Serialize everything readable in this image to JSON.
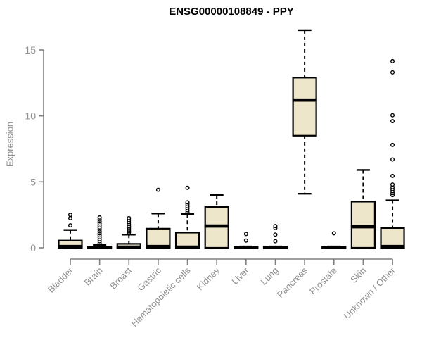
{
  "chart_data": {
    "type": "boxplot",
    "title": "ENSG00000108849 - PPY",
    "ylabel": "Expression",
    "ylim": [
      0,
      16.6
    ],
    "yticks": [
      0,
      5,
      10,
      15
    ],
    "grid": false,
    "colors": {
      "box_fill": "#EDE6CB",
      "box_border": "#000000",
      "axis_line": "#808080",
      "axis_text": "#8f8f8f",
      "title_text": "#000000"
    },
    "categories": [
      "Bladder",
      "Brain",
      "Breast",
      "Gastric",
      "Hematopoietic cells",
      "Kidney",
      "Liver",
      "Lung",
      "Pancreas",
      "Prostate",
      "Skin",
      "Unknown / Other"
    ],
    "series": [
      {
        "category": "Bladder",
        "whisker_low": 0,
        "q1": 0,
        "median": 0.1,
        "q3": 0.55,
        "whisker_high": 1.35,
        "outliers": [
          1.7,
          2.25,
          2.5
        ]
      },
      {
        "category": "Brain",
        "whisker_low": 0,
        "q1": 0,
        "median": 0.03,
        "q3": 0.1,
        "whisker_high": 0.2,
        "outliers": [
          0.35,
          0.5,
          0.65,
          0.8,
          0.95,
          1.1,
          1.25,
          1.4,
          1.55,
          1.7,
          1.85,
          2.0,
          2.15,
          2.3
        ]
      },
      {
        "category": "Breast",
        "whisker_low": 0,
        "q1": 0,
        "median": 0.05,
        "q3": 0.3,
        "whisker_high": 1.0,
        "outliers": [
          1.15,
          1.25,
          1.35,
          1.45,
          1.55,
          1.65,
          1.8,
          1.95,
          2.1,
          2.25
        ]
      },
      {
        "category": "Gastric",
        "whisker_low": 0,
        "q1": 0,
        "median": 0.1,
        "q3": 1.45,
        "whisker_high": 2.6,
        "outliers": [
          4.4
        ]
      },
      {
        "category": "Hematopoietic cells",
        "whisker_low": 0,
        "q1": 0,
        "median": 0.05,
        "q3": 1.15,
        "whisker_high": 2.55,
        "outliers": [
          2.7,
          2.85,
          3.0,
          3.15,
          3.3,
          3.45,
          4.55
        ]
      },
      {
        "category": "Kidney",
        "whisker_low": 0,
        "q1": 0,
        "median": 1.65,
        "q3": 3.1,
        "whisker_high": 4.0,
        "outliers": []
      },
      {
        "category": "Liver",
        "whisker_low": 0,
        "q1": 0,
        "median": 0.02,
        "q3": 0.06,
        "whisker_high": 0.1,
        "outliers": [
          0.55,
          1.05
        ]
      },
      {
        "category": "Lung",
        "whisker_low": 0,
        "q1": 0,
        "median": 0.02,
        "q3": 0.06,
        "whisker_high": 0.1,
        "outliers": [
          0.5,
          1.0,
          1.5,
          1.65
        ]
      },
      {
        "category": "Pancreas",
        "whisker_low": 4.1,
        "q1": 8.5,
        "median": 11.2,
        "q3": 12.9,
        "whisker_high": 16.5,
        "outliers": []
      },
      {
        "category": "Prostate",
        "whisker_low": 0,
        "q1": 0,
        "median": 0.02,
        "q3": 0.06,
        "whisker_high": 0.1,
        "outliers": [
          1.1
        ]
      },
      {
        "category": "Skin",
        "whisker_low": 0,
        "q1": 0,
        "median": 1.6,
        "q3": 3.5,
        "whisker_high": 5.9,
        "outliers": []
      },
      {
        "category": "Unknown / Other",
        "whisker_low": 0,
        "q1": 0,
        "median": 0.1,
        "q3": 1.5,
        "whisker_high": 3.6,
        "outliers": [
          4.0,
          4.15,
          4.3,
          4.45,
          4.6,
          4.8,
          5.45,
          6.7,
          7.8,
          9.6,
          10.05,
          13.3,
          14.15
        ]
      }
    ]
  }
}
